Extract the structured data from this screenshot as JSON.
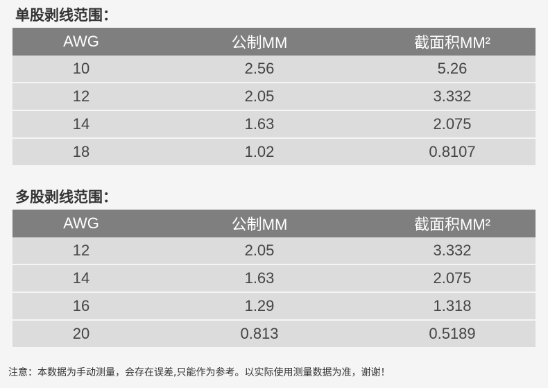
{
  "sections": [
    {
      "title": "单股剥线范围：",
      "headers": [
        "AWG",
        "公制MM",
        "截面积MM²"
      ],
      "rows": [
        [
          "10",
          "2.56",
          "5.26"
        ],
        [
          "12",
          "2.05",
          "3.332"
        ],
        [
          "14",
          "1.63",
          "2.075"
        ],
        [
          "18",
          "1.02",
          "0.8107"
        ]
      ]
    },
    {
      "title": "多股剥线范围：",
      "headers": [
        "AWG",
        "公制MM",
        "截面积MM²"
      ],
      "rows": [
        [
          "12",
          "2.05",
          "3.332"
        ],
        [
          "14",
          "1.63",
          "2.075"
        ],
        [
          "16",
          "1.29",
          "1.318"
        ],
        [
          "20",
          "0.813",
          "0.5189"
        ]
      ]
    }
  ],
  "note": "注意：本数据为手动测量，会存在误差,只能作为参考。以实际使用测量数据为准，谢谢！"
}
